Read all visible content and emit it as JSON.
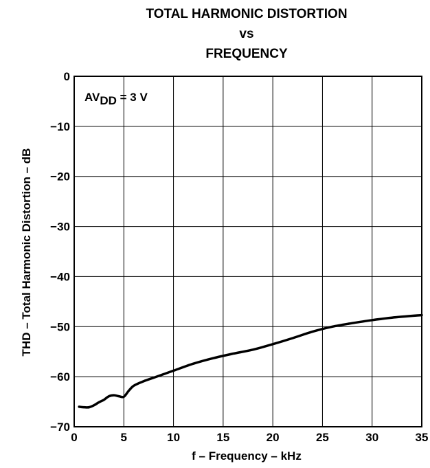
{
  "chart_data": {
    "type": "line",
    "title_lines": [
      "TOTAL HARMONIC DISTORTION",
      "vs",
      "FREQUENCY"
    ],
    "xlabel": "f – Frequency – kHz",
    "ylabel": "THD – Total Harmonic Distortion – dB",
    "xlim": [
      0,
      35
    ],
    "ylim": [
      -70,
      0
    ],
    "xticks": [
      0,
      5,
      10,
      15,
      20,
      25,
      30,
      35
    ],
    "yticks": [
      0,
      -10,
      -20,
      -30,
      -40,
      -50,
      -60,
      -70
    ],
    "xtick_labels": [
      "0",
      "5",
      "10",
      "15",
      "20",
      "25",
      "30",
      "35"
    ],
    "ytick_labels": [
      "0",
      "−10",
      "−20",
      "−30",
      "−40",
      "−50",
      "−60",
      "−70"
    ],
    "grid": true,
    "annotation": {
      "main": "AV",
      "sub": "DD",
      "suffix": " = 3 V"
    },
    "series": [
      {
        "x": [
          0.5,
          1.0,
          1.5,
          2.0,
          2.5,
          3.0,
          3.5,
          4.0,
          4.5,
          5.0,
          5.5,
          6.0,
          7.0,
          8.0,
          9.0,
          10.0,
          12.0,
          14.0,
          16.0,
          18.0,
          20.0,
          22.0,
          24.0,
          26.0,
          28.0,
          30.0,
          32.0,
          35.0
        ],
        "y": [
          -66.0,
          -66.1,
          -66.1,
          -65.7,
          -65.1,
          -64.6,
          -63.9,
          -63.7,
          -63.9,
          -64.0,
          -62.8,
          -61.8,
          -60.9,
          -60.2,
          -59.5,
          -58.8,
          -57.4,
          -56.3,
          -55.4,
          -54.6,
          -53.5,
          -52.3,
          -51.0,
          -50.0,
          -49.3,
          -48.7,
          -48.2,
          -47.7
        ]
      }
    ]
  }
}
